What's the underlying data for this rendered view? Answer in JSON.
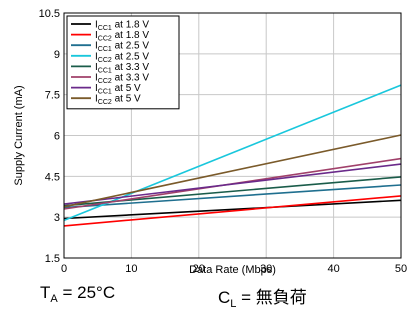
{
  "chart_data": {
    "type": "line",
    "xlabel": "Data Rate (Mbps)",
    "ylabel": "Supply Current (mA)",
    "xlim": [
      0,
      50
    ],
    "ylim": [
      1.5,
      10.5
    ],
    "xticks": [
      0,
      10,
      20,
      30,
      40,
      50
    ],
    "yticks": [
      1.5,
      3,
      4.5,
      6,
      7.5,
      9,
      10.5
    ],
    "grid": true,
    "legend_position": "top-left",
    "series": [
      {
        "name": "ICC1 at 1.8 V",
        "sub": "CC1",
        "suffix": " at 1.8 V",
        "color": "#000000",
        "x": [
          0,
          50
        ],
        "y": [
          2.95,
          3.62
        ]
      },
      {
        "name": "ICC2 at 1.8 V",
        "sub": "CC2",
        "suffix": " at 1.8 V",
        "color": "#ff0000",
        "x": [
          0,
          50
        ],
        "y": [
          2.68,
          3.78
        ]
      },
      {
        "name": "ICC1 at 2.5 V",
        "sub": "CC1",
        "suffix": " at 2.5 V",
        "color": "#1f6f8f",
        "x": [
          0,
          50
        ],
        "y": [
          3.35,
          4.18
        ]
      },
      {
        "name": "ICC2 at 2.5 V",
        "sub": "CC2",
        "suffix": " at 2.5 V",
        "color": "#19c7dc",
        "x": [
          0,
          50
        ],
        "y": [
          2.88,
          7.85
        ]
      },
      {
        "name": "ICC1 at 3.3 V",
        "sub": "CC1",
        "suffix": " at 3.3 V",
        "color": "#1a5c4a",
        "x": [
          0,
          50
        ],
        "y": [
          3.42,
          4.48
        ]
      },
      {
        "name": "ICC2 at 3.3 V",
        "sub": "CC2",
        "suffix": " at 3.3 V",
        "color": "#a0406a",
        "x": [
          0,
          50
        ],
        "y": [
          3.3,
          5.15
        ]
      },
      {
        "name": "ICC1 at 5 V",
        "sub": "CC1",
        "suffix": " at 5 V",
        "color": "#6a2a8a",
        "x": [
          0,
          50
        ],
        "y": [
          3.48,
          4.95
        ]
      },
      {
        "name": "ICC2 at 5 V",
        "sub": "CC2",
        "suffix": " at 5 V",
        "color": "#7a5a2a",
        "x": [
          0,
          50
        ],
        "y": [
          3.38,
          6.02
        ]
      }
    ]
  },
  "footer": {
    "ta_main": "T",
    "ta_sub": "A",
    "ta_value": " = 25°C",
    "cl_main": "C",
    "cl_sub": "L",
    "cl_value": " = 無負荷"
  }
}
